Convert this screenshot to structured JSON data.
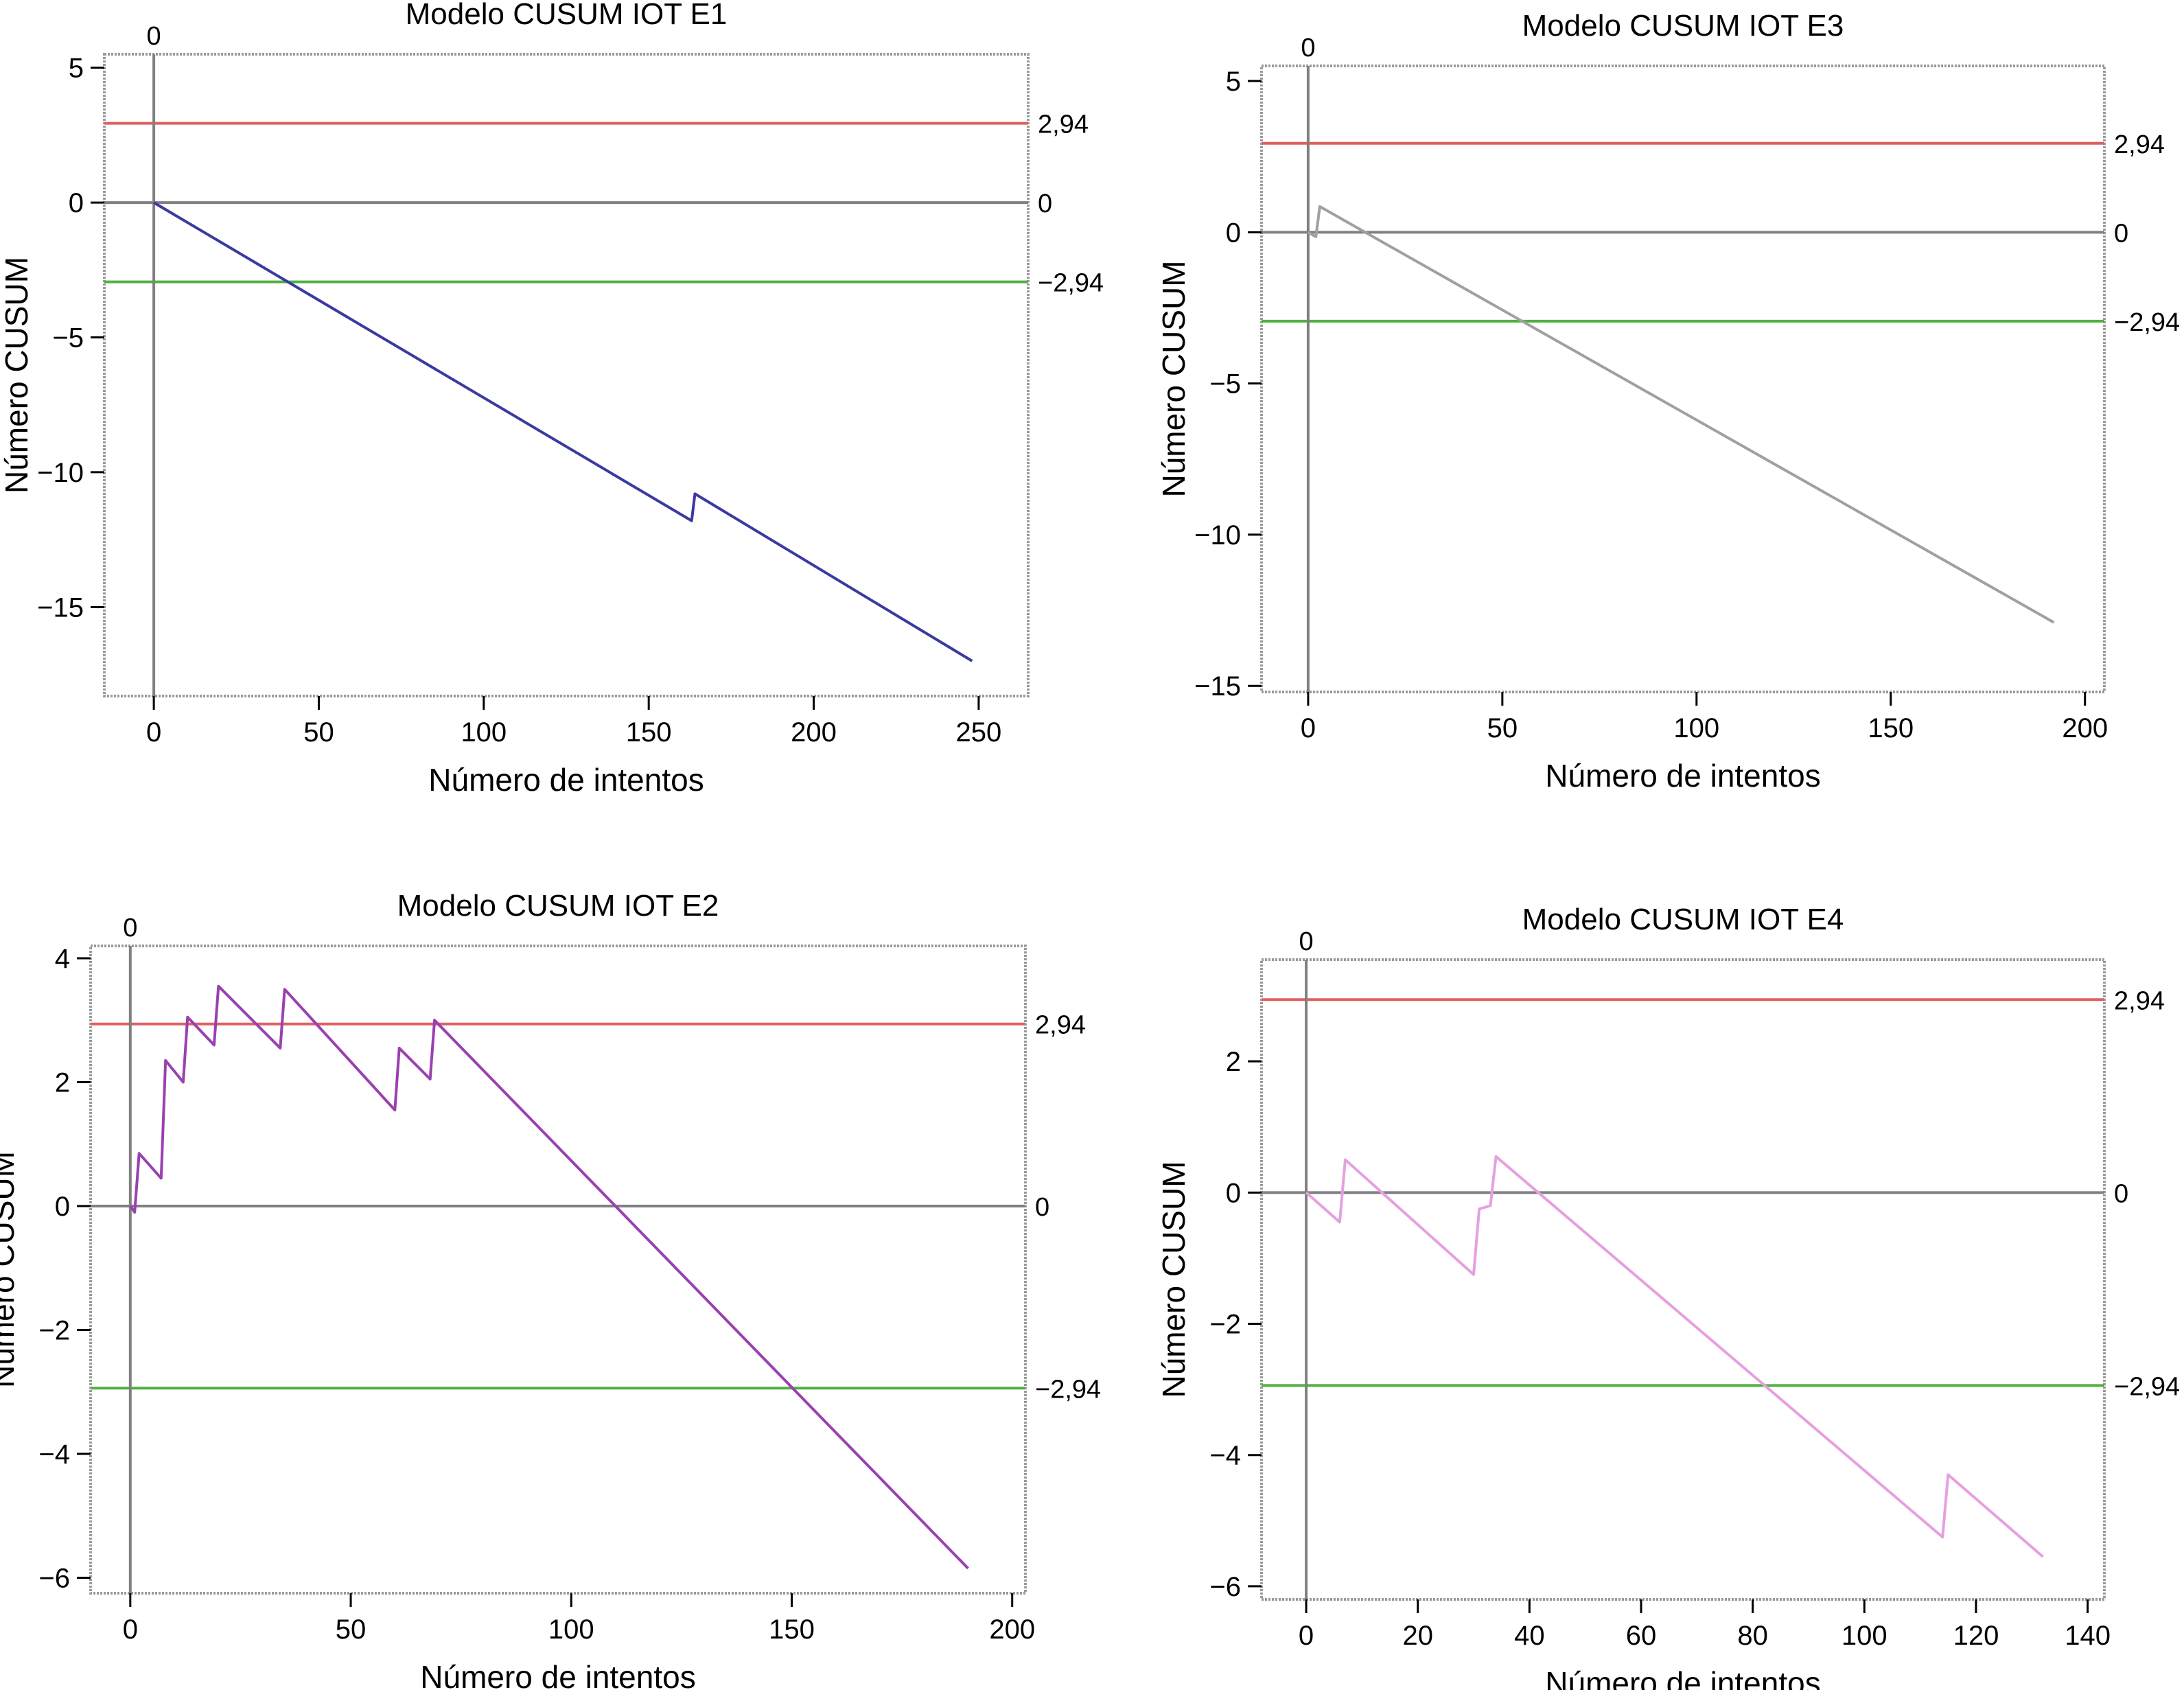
{
  "line_colors": {
    "upper": "#e06060",
    "zero": "#808080",
    "lower": "#50b040",
    "frame": "#9a9a9a"
  },
  "chart_data": [
    {
      "type": "line",
      "title": "Modelo CUSUM IOT E1",
      "xlabel": "Número de intentos",
      "ylabel": "Número CUSUM",
      "xlim": [
        -15,
        265
      ],
      "ylim": [
        -18.3,
        5.5
      ],
      "xticks": [
        0,
        50,
        100,
        150,
        200,
        250
      ],
      "yticks": [
        5,
        0,
        -5,
        -10,
        -15
      ],
      "ytick_labels": [
        "5",
        "0",
        "−5",
        "−10",
        "−15"
      ],
      "vline": {
        "x": 0,
        "label": "0"
      },
      "hlines": [
        {
          "y": 2.94,
          "label": "2,94",
          "role": "upper"
        },
        {
          "y": 0,
          "label": "0",
          "role": "zero"
        },
        {
          "y": -2.94,
          "label": "−2,94",
          "role": "lower"
        }
      ],
      "series": [
        {
          "color": "#3a3aa0",
          "x": [
            0,
            163,
            164,
            248
          ],
          "y": [
            0,
            -11.8,
            -10.8,
            -17.0
          ]
        }
      ]
    },
    {
      "type": "line",
      "title": "Modelo CUSUM IOT E3",
      "xlabel": "Número de intentos",
      "ylabel": "Número CUSUM",
      "xlim": [
        -12,
        205
      ],
      "ylim": [
        -15.2,
        5.5
      ],
      "xticks": [
        0,
        50,
        100,
        150,
        200
      ],
      "yticks": [
        5,
        0,
        -5,
        -10,
        -15
      ],
      "ytick_labels": [
        "5",
        "0",
        "−5",
        "−10",
        "−15"
      ],
      "vline": {
        "x": 0,
        "label": "0"
      },
      "hlines": [
        {
          "y": 2.94,
          "label": "2,94",
          "role": "upper"
        },
        {
          "y": 0,
          "label": "0",
          "role": "zero"
        },
        {
          "y": -2.94,
          "label": "−2,94",
          "role": "lower"
        }
      ],
      "series": [
        {
          "color": "#a0a0a0",
          "x": [
            0,
            2,
            3,
            192
          ],
          "y": [
            0,
            -0.15,
            0.85,
            -12.9
          ]
        }
      ]
    },
    {
      "type": "line",
      "title": "Modelo CUSUM IOT E2",
      "xlabel": "Número de intentos",
      "ylabel": "Número CUSUM",
      "xlim": [
        -9,
        203
      ],
      "ylim": [
        -6.25,
        4.2
      ],
      "xticks": [
        0,
        50,
        100,
        150,
        200
      ],
      "yticks": [
        4,
        2,
        0,
        -2,
        -4,
        -6
      ],
      "ytick_labels": [
        "4",
        "2",
        "0",
        "−2",
        "−4",
        "−6"
      ],
      "vline": {
        "x": 0,
        "label": "0"
      },
      "hlines": [
        {
          "y": 2.94,
          "label": "2,94",
          "role": "upper"
        },
        {
          "y": 0,
          "label": "0",
          "role": "zero"
        },
        {
          "y": -2.94,
          "label": "−2,94",
          "role": "lower"
        }
      ],
      "series": [
        {
          "color": "#9a40b0",
          "x": [
            0,
            1,
            2,
            7,
            8,
            12,
            13,
            19,
            20,
            34,
            35,
            60,
            61,
            68,
            69,
            190
          ],
          "y": [
            0,
            -0.1,
            0.85,
            0.45,
            2.35,
            2.0,
            3.05,
            2.6,
            3.55,
            2.55,
            3.5,
            1.55,
            2.55,
            2.05,
            3.0,
            -5.85
          ]
        }
      ]
    },
    {
      "type": "line",
      "title": "Modelo CUSUM IOT E4",
      "xlabel": "Número de intentos",
      "ylabel": "Número CUSUM",
      "xlim": [
        -8,
        143
      ],
      "ylim": [
        -6.2,
        3.55
      ],
      "xticks": [
        0,
        20,
        40,
        60,
        80,
        100,
        120,
        140
      ],
      "yticks": [
        2,
        0,
        -2,
        -4,
        -6
      ],
      "ytick_labels": [
        "2",
        "0",
        "−2",
        "−4",
        "−6"
      ],
      "vline": {
        "x": 0,
        "label": "0"
      },
      "hlines": [
        {
          "y": 2.94,
          "label": "2,94",
          "role": "upper"
        },
        {
          "y": 0,
          "label": "0",
          "role": "zero"
        },
        {
          "y": -2.94,
          "label": "−2,94",
          "role": "lower"
        }
      ],
      "series": [
        {
          "color": "#e6a0e0",
          "x": [
            0,
            6,
            7,
            30,
            31,
            33,
            34,
            114,
            115,
            132
          ],
          "y": [
            0,
            -0.45,
            0.5,
            -1.25,
            -0.25,
            -0.2,
            0.55,
            -5.25,
            -4.3,
            -5.55
          ]
        }
      ]
    }
  ]
}
